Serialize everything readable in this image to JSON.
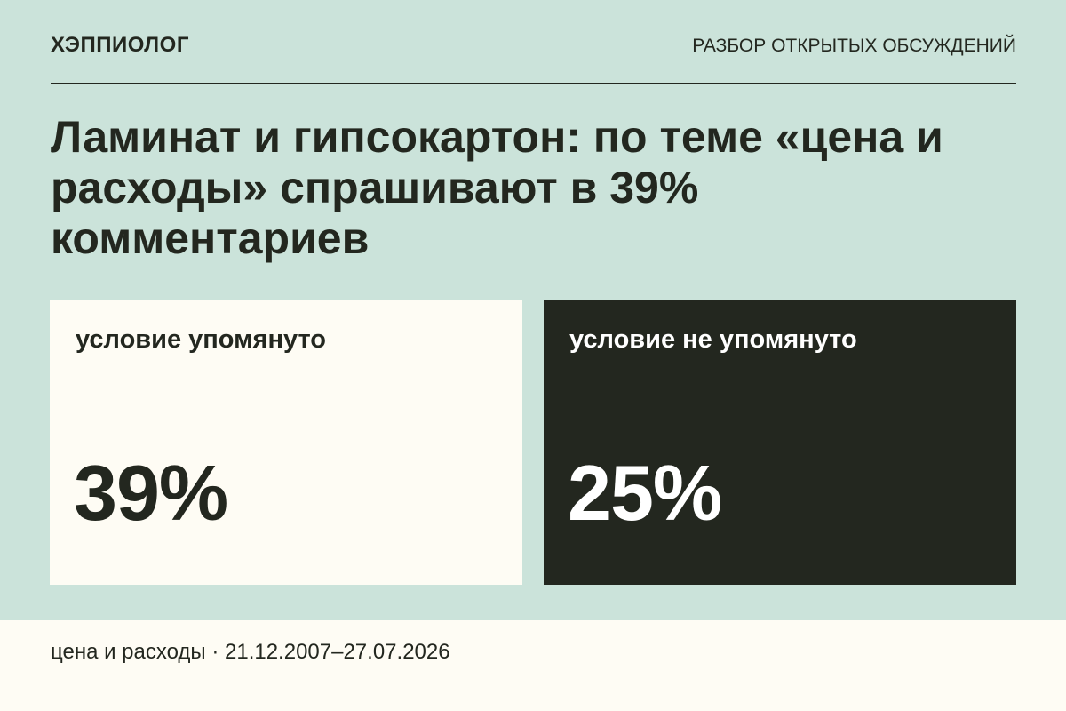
{
  "header": {
    "brand": "ХЭППИОЛОГ",
    "section": "РАЗБОР ОТКРЫТЫХ ОБСУЖДЕНИЙ"
  },
  "headline": "Ламинат и гипсокартон: по теме «цена и расходы» спрашивают в 39% комментариев",
  "panels": [
    {
      "label": "условие упомянуто",
      "value": "39%",
      "background": "#fefcf4",
      "text_color": "#23271f"
    },
    {
      "label": "условие не упомянуто",
      "value": "25%",
      "background": "#23271f",
      "text_color": "#ffffff"
    }
  ],
  "footer": {
    "caption": "цена и расходы · 21.12.2007–27.07.2026"
  },
  "colors": {
    "page_background": "#cbe3da",
    "ink": "#23271f",
    "paper": "#fefcf4"
  }
}
